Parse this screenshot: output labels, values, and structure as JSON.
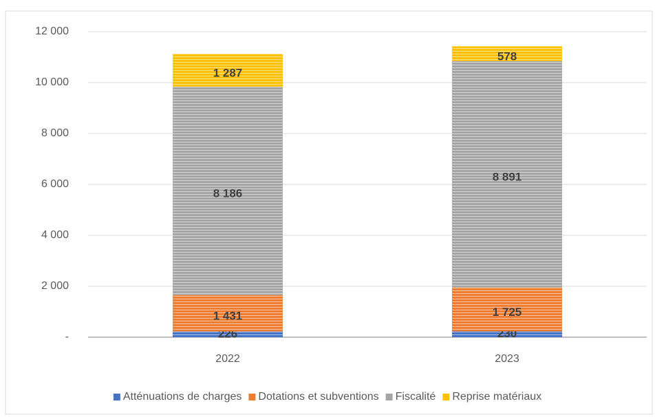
{
  "chart_data": {
    "type": "stacked_bar",
    "categories": [
      "2022",
      "2023"
    ],
    "series": [
      {
        "name": "Atténuations de charges",
        "color": "#4472c4",
        "values": [
          226,
          230
        ],
        "value_labels": [
          "226",
          "230"
        ]
      },
      {
        "name": "Dotations et subventions",
        "color": "#ed7d31",
        "values": [
          1431,
          1725
        ],
        "value_labels": [
          "1 431",
          "1 725"
        ]
      },
      {
        "name": "Fiscalité",
        "color": "#a5a5a5",
        "values": [
          8186,
          8891
        ],
        "value_labels": [
          "8 186",
          "8 891"
        ]
      },
      {
        "name": "Reprise matériaux",
        "color": "#ffc000",
        "values": [
          1287,
          578
        ],
        "value_labels": [
          "1 287",
          "578"
        ]
      }
    ],
    "ylim": [
      0,
      12000
    ],
    "yticks": [
      {
        "value": 0,
        "label": "-"
      },
      {
        "value": 2000,
        "label": "2 000"
      },
      {
        "value": 4000,
        "label": "4 000"
      },
      {
        "value": 6000,
        "label": "6 000"
      },
      {
        "value": 8000,
        "label": "8 000"
      },
      {
        "value": 10000,
        "label": "10 000"
      },
      {
        "value": 12000,
        "label": "12 000"
      }
    ],
    "grid": true,
    "legend": "bottom"
  }
}
